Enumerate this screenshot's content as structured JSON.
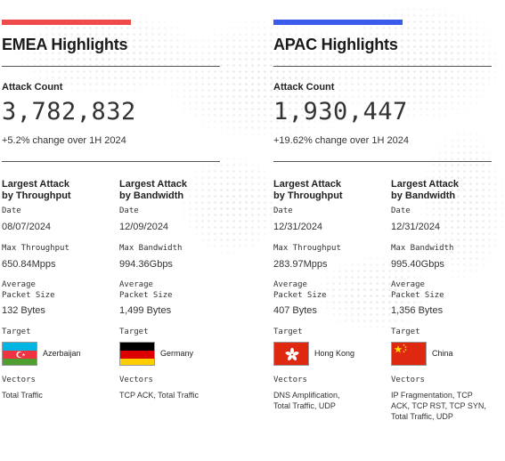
{
  "regions": [
    {
      "title": "EMEA Highlights",
      "accent_color": "#ef4b4b",
      "attack_count_label": "Attack Count",
      "attack_count": "3,782,832",
      "change": "+5.2% change over 1H 2024",
      "columns": [
        {
          "header_line1": "Largest Attack",
          "header_line2": "by Throughput",
          "date_label": "Date",
          "date": "08/07/2024",
          "metric_label": "Max Throughput",
          "metric_value": "650.84Mpps",
          "packet_label_line1": "Average",
          "packet_label_line2": "Packet Size",
          "packet_size": "132 Bytes",
          "target_label": "Target",
          "flag_icon": "azerbaijan-flag-icon",
          "country": "Azerbaijan",
          "vectors_label": "Vectors",
          "vectors": "Total Traffic"
        },
        {
          "header_line1": "Largest Attack",
          "header_line2": "by Bandwidth",
          "date_label": "Date",
          "date": "12/09/2024",
          "metric_label": "Max Bandwidth",
          "metric_value": "994.36Gbps",
          "packet_label_line1": "Average",
          "packet_label_line2": "Packet Size",
          "packet_size": "1,499 Bytes",
          "target_label": "Target",
          "flag_icon": "germany-flag-icon",
          "country": "Germany",
          "vectors_label": "Vectors",
          "vectors": "TCP ACK, Total Traffic"
        }
      ]
    },
    {
      "title": "APAC Highlights",
      "accent_color": "#3b5bea",
      "attack_count_label": "Attack Count",
      "attack_count": "1,930,447",
      "change": "+19.62% change over 1H 2024",
      "columns": [
        {
          "header_line1": "Largest Attack",
          "header_line2": "by Throughput",
          "date_label": "Date",
          "date": "12/31/2024",
          "metric_label": "Max Throughput",
          "metric_value": "283.97Mpps",
          "packet_label_line1": "Average",
          "packet_label_line2": "Packet Size",
          "packet_size": "407 Bytes",
          "target_label": "Target",
          "flag_icon": "hong-kong-flag-icon",
          "country": "Hong Kong",
          "vectors_label": "Vectors",
          "vectors_line1": "DNS Amplification,",
          "vectors_line2": "Total Traffic, UDP"
        },
        {
          "header_line1": "Largest Attack",
          "header_line2": "by Bandwidth",
          "date_label": "Date",
          "date": "12/31/2024",
          "metric_label": "Max Bandwidth",
          "metric_value": "995.40Gbps",
          "packet_label_line1": "Average",
          "packet_label_line2": "Packet Size",
          "packet_size": "1,356 Bytes",
          "target_label": "Target",
          "flag_icon": "china-flag-icon",
          "country": "China",
          "vectors_label": "Vectors",
          "vectors_line1": "IP Fragmentation, TCP",
          "vectors_line2": "ACK, TCP RST, TCP SYN,",
          "vectors_line3": "Total Traffic, UDP"
        }
      ]
    }
  ]
}
